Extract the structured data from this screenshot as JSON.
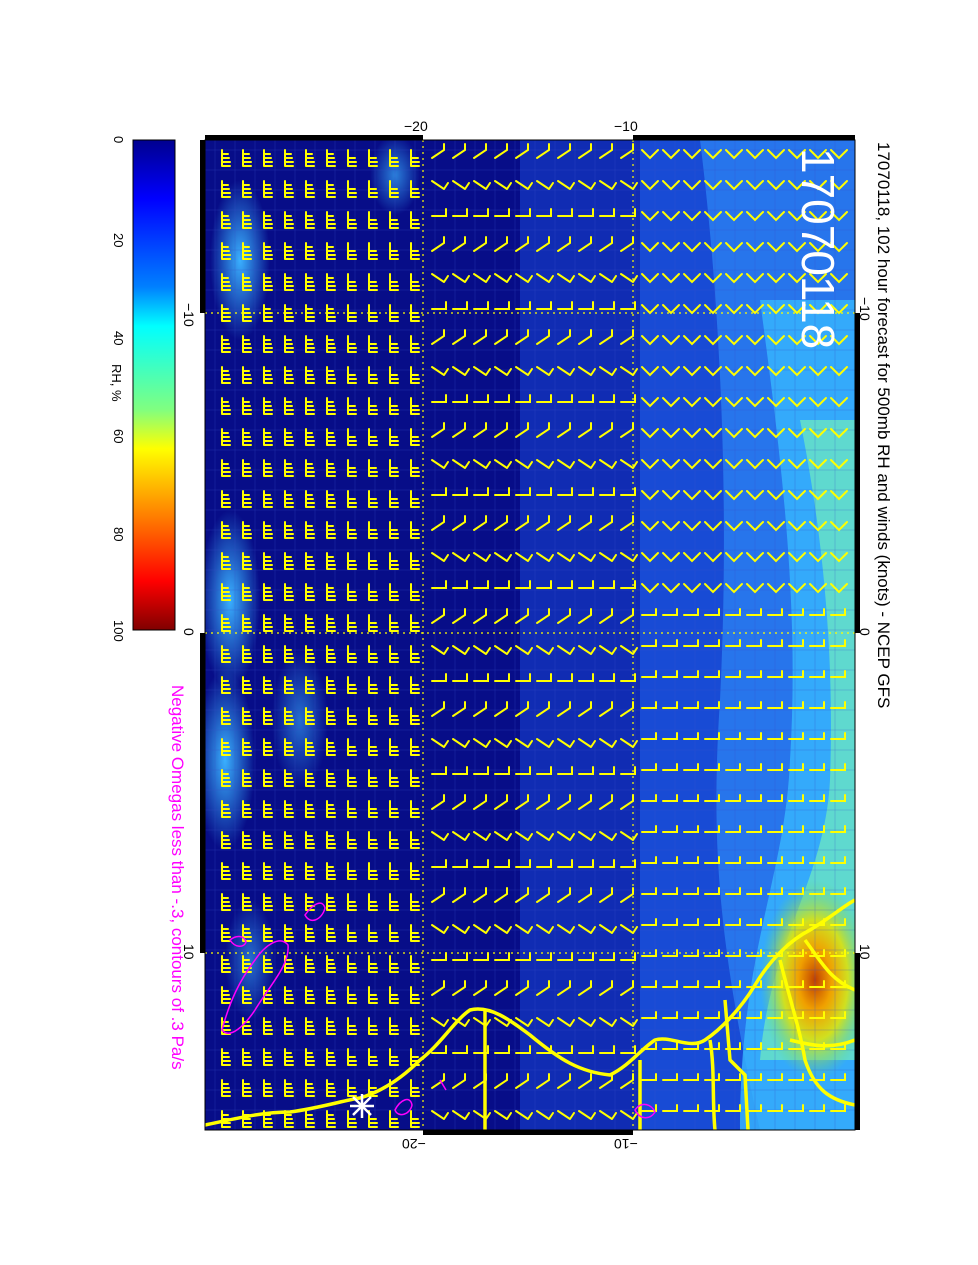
{
  "title": "17070118, 102 hour forecast for 500mb RH and winds (knots) - NCEP GFS",
  "stamp": "17070118",
  "footnote": "Negative Omegas less than -.3, contours of .3 Pa/s",
  "colorbar": {
    "label": "RH, %",
    "ticks": [
      "0",
      "20",
      "40",
      "60",
      "80",
      "100"
    ]
  },
  "map_axes": {
    "top_ticks": [
      "−20",
      "−10"
    ],
    "bottom_ticks": [
      "−20",
      "−10"
    ],
    "left_ticks": [
      "−10",
      "0",
      "10"
    ],
    "right_ticks": [
      "−10",
      "0",
      "10"
    ]
  },
  "colors": {
    "wind_barbs": "#ffff00",
    "coastline": "#ffff00",
    "omega_contours": "#ff00ff",
    "footnote": "#ff00ff",
    "stamp_text": "#ffffff",
    "rh_low": "#00007f",
    "rh_high": "#7f0000"
  },
  "marker": "star-marker"
}
